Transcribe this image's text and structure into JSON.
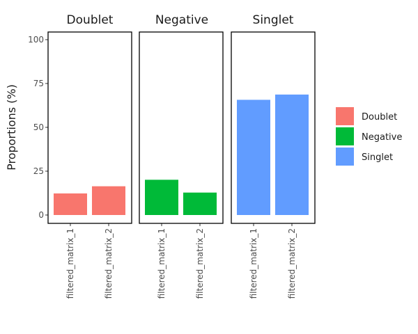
{
  "chart_data": {
    "type": "bar",
    "facets": [
      "Doublet",
      "Negative",
      "Singlet"
    ],
    "categories": [
      "filtered_matrix_1",
      "filtered_matrix_2"
    ],
    "series": [
      {
        "name": "Doublet",
        "facet": "Doublet",
        "color": "#F8766D",
        "values": [
          12.3,
          16.4
        ]
      },
      {
        "name": "Negative",
        "facet": "Negative",
        "color": "#00BA38",
        "values": [
          20.1,
          12.8
        ]
      },
      {
        "name": "Singlet",
        "facet": "Singlet",
        "color": "#619CFF",
        "values": [
          65.7,
          68.7
        ]
      }
    ],
    "ylabel": "Proportions (%)",
    "xlabel": "",
    "ylim": [
      0,
      100
    ],
    "yticks": [
      "0",
      "25",
      "50",
      "75",
      "100"
    ],
    "grid": false,
    "legend": {
      "placement": "right",
      "entries": [
        "Doublet",
        "Negative",
        "Singlet"
      ]
    }
  }
}
